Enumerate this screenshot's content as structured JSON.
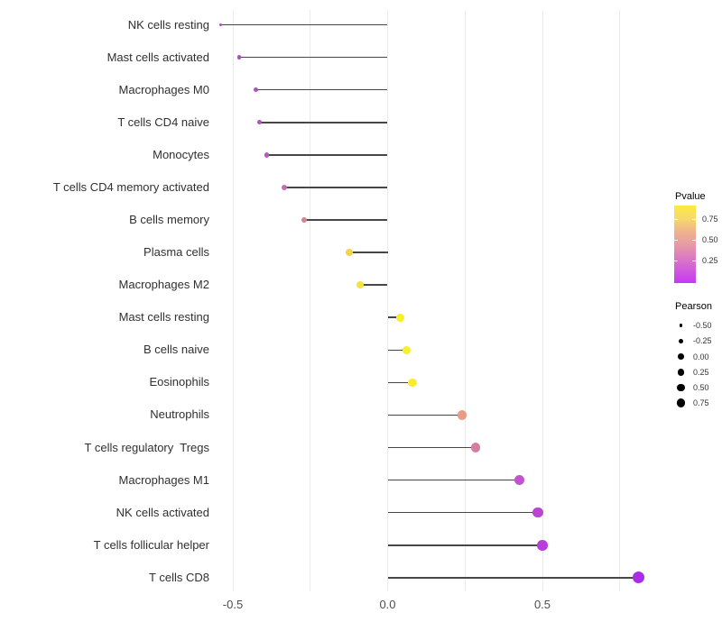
{
  "chart_data": {
    "type": "lollipop",
    "title": "",
    "xlabel": "",
    "ylabel": "",
    "x_ticks": [
      {
        "label": "-0.5",
        "value": -0.5
      },
      {
        "label": "0.0",
        "value": 0.0
      },
      {
        "label": "0.5",
        "value": 0.5
      }
    ],
    "gridline_values": [
      -0.5,
      -0.25,
      0.0,
      0.25,
      0.5,
      0.75
    ],
    "xlim": [
      -0.59,
      0.92
    ],
    "grid_on": true,
    "panel_background": "#ffffff",
    "gridline_color": "#ebebeb",
    "stick_color": "#474747",
    "points": [
      {
        "label": "NK cells resting",
        "pearson": -0.54,
        "color": "#AC49CE"
      },
      {
        "label": "Mast cells activated",
        "pearson": -0.48,
        "color": "#B04CC9"
      },
      {
        "label": "Macrophages M0",
        "pearson": -0.425,
        "color": "#B14EC7"
      },
      {
        "label": "T cells CD4 naive",
        "pearson": -0.415,
        "color": "#B24FC6"
      },
      {
        "label": "Monocytes",
        "pearson": -0.39,
        "color": "#BA57C3"
      },
      {
        "label": "T cells CD4 memory activated",
        "pearson": -0.335,
        "color": "#C56BB5"
      },
      {
        "label": "B cells memory",
        "pearson": -0.27,
        "color": "#D6838E"
      },
      {
        "label": "Plasma cells",
        "pearson": -0.125,
        "color": "#F1D64D"
      },
      {
        "label": "Macrophages M2",
        "pearson": -0.09,
        "color": "#F5E23D"
      },
      {
        "label": "Mast cells resting",
        "pearson": 0.04,
        "color": "#F9EE2B"
      },
      {
        "label": "B cells naive",
        "pearson": 0.06,
        "color": "#F9EE2B"
      },
      {
        "label": "Eosinophils",
        "pearson": 0.08,
        "color": "#F8EC2E"
      },
      {
        "label": "Neutrophils",
        "pearson": 0.24,
        "color": "#E89B87"
      },
      {
        "label": "T cells regulatory  Tregs",
        "pearson": 0.285,
        "color": "#D27DA2"
      },
      {
        "label": "Macrophages M1",
        "pearson": 0.425,
        "color": "#C154CA"
      },
      {
        "label": "NK cells activated",
        "pearson": 0.485,
        "color": "#BB45D2"
      },
      {
        "label": "T cells follicular helper",
        "pearson": 0.5,
        "color": "#B73EDA"
      },
      {
        "label": "T cells CD8",
        "pearson": 0.81,
        "color": "#A92DE7"
      }
    ],
    "legend_pvalue": {
      "title": "Pvalue",
      "tick_labels": [
        "0.75",
        "0.50",
        "0.25"
      ],
      "gradient_stops": [
        "#FAEC3D",
        "#F6D96B",
        "#EFB48C",
        "#E79BA5",
        "#DC7BC2",
        "#D05BDC",
        "#C538F2"
      ],
      "legend_position": "right"
    },
    "legend_pearson": {
      "title": "Pearson",
      "entries": [
        {
          "label": "-0.50",
          "value": -0.5
        },
        {
          "label": "-0.25",
          "value": -0.25
        },
        {
          "label": "0.00",
          "value": 0.0
        },
        {
          "label": "0.25",
          "value": 0.25
        },
        {
          "label": "0.50",
          "value": 0.5
        },
        {
          "label": "0.75",
          "value": 0.75
        }
      ],
      "dot_color": "#000000"
    }
  }
}
